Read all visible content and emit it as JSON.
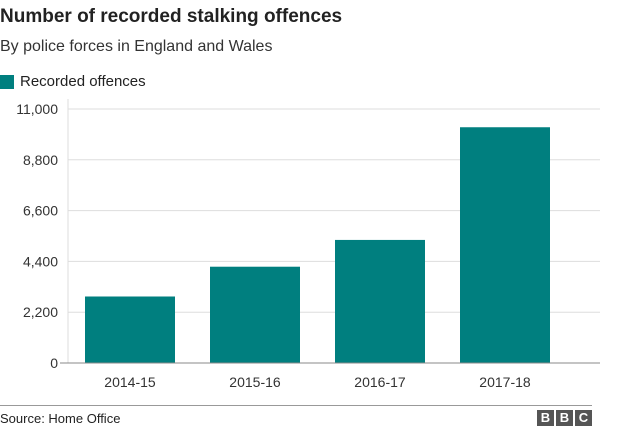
{
  "chart_data": {
    "type": "bar",
    "title": "Number of recorded stalking offences",
    "subtitle": "By police forces in England and Wales",
    "categories": [
      "2014-15",
      "2015-16",
      "2016-17",
      "2017-18"
    ],
    "series": [
      {
        "name": "Recorded offences",
        "values": [
          2880,
          4170,
          5330,
          10210
        ],
        "color": "#007f7f"
      }
    ],
    "ylim": [
      0,
      11000
    ],
    "yticks": [
      "0",
      "2,200",
      "4,400",
      "6,600",
      "8,800",
      "11,000"
    ],
    "grid": true,
    "legend": "top-left",
    "source": "Source: Home Office"
  },
  "logo": [
    "B",
    "B",
    "C"
  ]
}
